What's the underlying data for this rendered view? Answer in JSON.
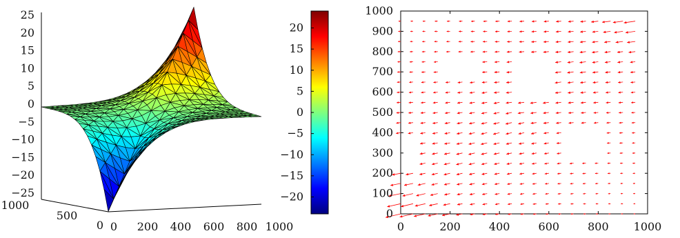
{
  "chart_data": [
    {
      "type": "surface",
      "x_ticks": [
        "0",
        "200",
        "400",
        "600",
        "800",
        "1000"
      ],
      "y_ticks": [
        "1000",
        "500",
        "0"
      ],
      "z_ticks": [
        "25",
        "20",
        "15",
        "10",
        "5",
        "0",
        "−5",
        "−10",
        "−15",
        "−20",
        "−25"
      ],
      "colorbar_ticks": [
        "20",
        "15",
        "10",
        "5",
        "0",
        "−5",
        "−10",
        "−15",
        "−20"
      ],
      "xlim": [
        0,
        1000
      ],
      "ylim": [
        0,
        1000
      ],
      "zlim": [
        -25,
        25
      ],
      "colormap": [
        "#00007f",
        "#0000ff",
        "#007fff",
        "#00ffff",
        "#7fff7f",
        "#ffff00",
        "#ff7f00",
        "#ff0000",
        "#7f0000"
      ],
      "corner_values": {
        "x0_y0": -25,
        "x1000_y1000": 25,
        "x0_y1000": 0,
        "x1000_y0": 0
      },
      "grid": false,
      "mesh": "triangulated"
    },
    {
      "type": "vector_field",
      "title": "",
      "xlabel": "",
      "ylabel": "",
      "xlim": [
        0,
        1000
      ],
      "ylim": [
        0,
        1000
      ],
      "x_ticks": [
        "0",
        "200",
        "400",
        "600",
        "800",
        "1000"
      ],
      "y_ticks": [
        "0",
        "100",
        "200",
        "300",
        "400",
        "500",
        "600",
        "700",
        "800",
        "900",
        "1000"
      ],
      "arrow_color": "#ff0000",
      "grid": false
    }
  ]
}
